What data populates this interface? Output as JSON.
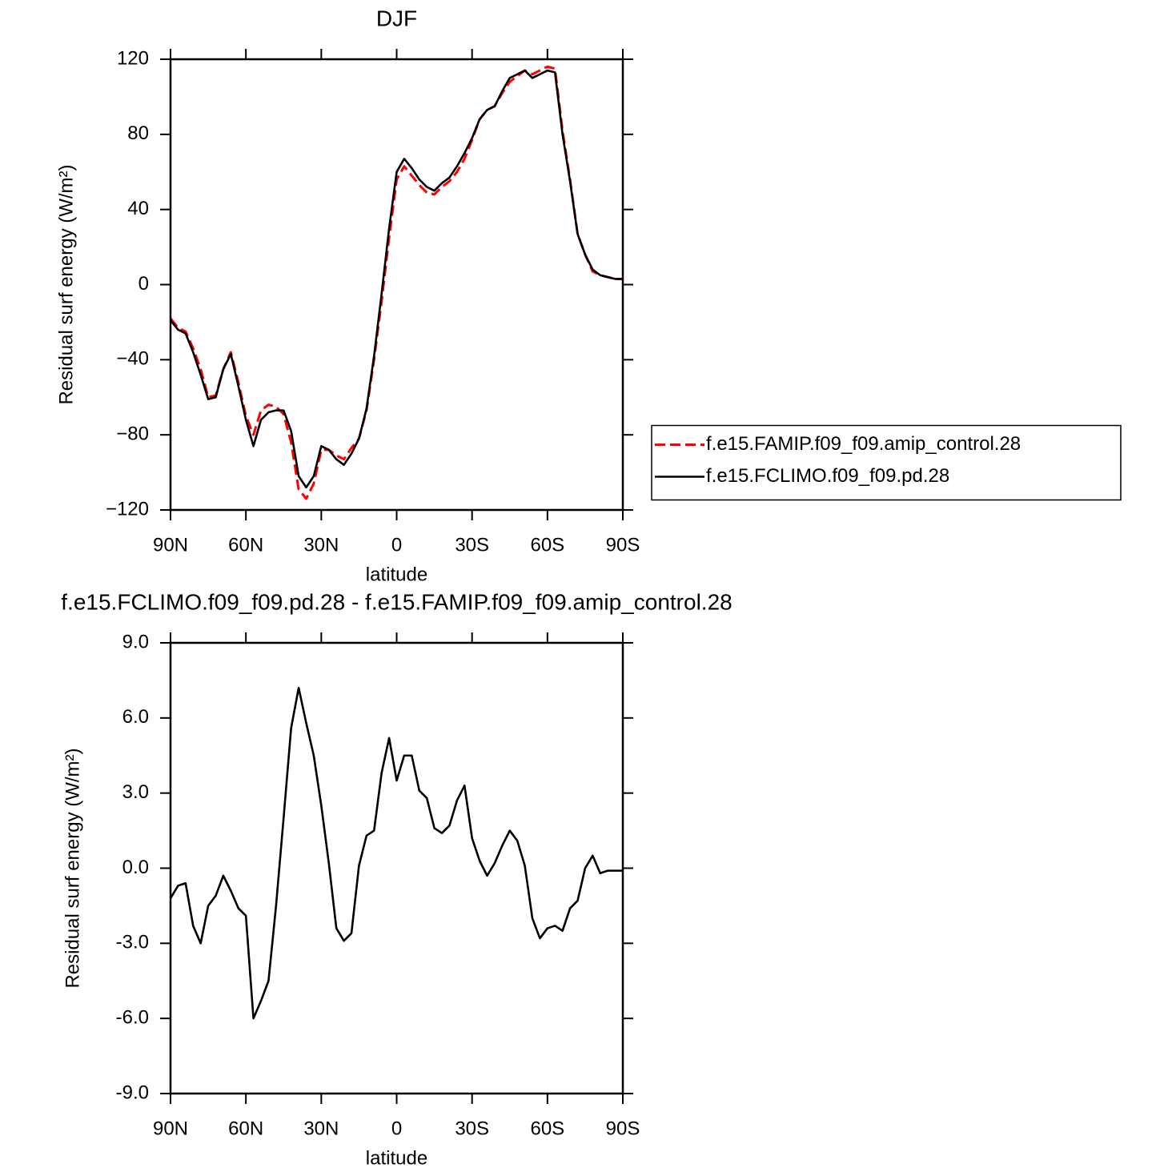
{
  "chart_data": [
    {
      "type": "line",
      "title": "DJF",
      "xlabel": "latitude",
      "ylabel": "Residual surf energy (W/m²)",
      "x": [
        90,
        87,
        84,
        81,
        78,
        75,
        72,
        69,
        66,
        63,
        60,
        57,
        54,
        51,
        48,
        45,
        42,
        39,
        36,
        33,
        30,
        27,
        24,
        21,
        18,
        15,
        12,
        9,
        6,
        3,
        0,
        -3,
        -6,
        -9,
        -12,
        -15,
        -18,
        -21,
        -24,
        -27,
        -30,
        -33,
        -36,
        -39,
        -42,
        -45,
        -48,
        -51,
        -54,
        -57,
        -60,
        -63,
        -66,
        -69,
        -72,
        -75,
        -78,
        -81,
        -84,
        -87,
        -90
      ],
      "series": [
        {
          "name": "f.e15.FAMIP.f09_f09.amip_control.28",
          "color": "#ff0000",
          "dashed": true,
          "values": [
            -18,
            -23,
            -25,
            -34,
            -45,
            -60,
            -59,
            -45,
            -36,
            -52,
            -70,
            -80,
            -67,
            -64,
            -65,
            -69,
            -84,
            -109,
            -114,
            -106,
            -88,
            -88,
            -91,
            -93,
            -87,
            -82,
            -67,
            -40,
            -9,
            25,
            56,
            63,
            58,
            53,
            49,
            48,
            52,
            55,
            60,
            67,
            77,
            88,
            93,
            95,
            102,
            108,
            111,
            114,
            112,
            114,
            116,
            115,
            82,
            56,
            27,
            16,
            7,
            5,
            4,
            3,
            3
          ]
        },
        {
          "name": "f.e15.FCLIMO.f09_f09.pd.28",
          "color": "#000000",
          "dashed": false,
          "values": [
            -19,
            -24,
            -26,
            -36,
            -48,
            -61,
            -60,
            -45,
            -37,
            -54,
            -72,
            -86,
            -72,
            -68,
            -67,
            -67,
            -78,
            -102,
            -108,
            -102,
            -86,
            -88,
            -93,
            -96,
            -90,
            -82,
            -66,
            -38,
            -5,
            30,
            60,
            67,
            62,
            56,
            52,
            50,
            54,
            57,
            63,
            70,
            78,
            88,
            93,
            95,
            103,
            110,
            112,
            114,
            110,
            112,
            114,
            113,
            80,
            55,
            27,
            16,
            8,
            5,
            4,
            3,
            3
          ]
        }
      ],
      "xlim": [
        90,
        -90
      ],
      "xticks": [
        {
          "value": 90,
          "label": "90N"
        },
        {
          "value": 60,
          "label": "60N"
        },
        {
          "value": 30,
          "label": "30N"
        },
        0,
        {
          "value": -30,
          "label": "30S"
        },
        {
          "value": -60,
          "label": "60S"
        },
        {
          "value": -90,
          "label": "90S"
        }
      ],
      "ylim": [
        -120,
        120
      ],
      "yticks": [
        {
          "value": -120,
          "label": "−120"
        },
        {
          "value": -80,
          "label": "−80"
        },
        {
          "value": -40,
          "label": "−40"
        },
        0,
        40,
        80,
        120
      ],
      "legend": "right"
    },
    {
      "type": "line",
      "title": "f.e15.FCLIMO.f09_f09.pd.28 - f.e15.FAMIP.f09_f09.amip_control.28",
      "xlabel": "latitude",
      "ylabel": "Residual surf energy (W/m²)",
      "x": [
        90,
        87,
        84,
        81,
        78,
        75,
        72,
        69,
        66,
        63,
        60,
        57,
        54,
        51,
        48,
        45,
        42,
        39,
        36,
        33,
        30,
        27,
        24,
        21,
        18,
        15,
        12,
        9,
        6,
        3,
        0,
        -3,
        -6,
        -9,
        -12,
        -15,
        -18,
        -21,
        -24,
        -27,
        -30,
        -33,
        -36,
        -39,
        -42,
        -45,
        -48,
        -51,
        -54,
        -57,
        -60,
        -63,
        -66,
        -69,
        -72,
        -75,
        -78,
        -81,
        -84,
        -87,
        -90
      ],
      "color": "#000000",
      "values": [
        -1.2,
        -0.7,
        -0.6,
        -2.3,
        -3.0,
        -1.5,
        -1.1,
        -0.3,
        -0.9,
        -1.6,
        -1.9,
        -6.0,
        -5.3,
        -4.5,
        -1.5,
        2.0,
        5.6,
        7.2,
        5.8,
        4.5,
        2.5,
        0.2,
        -2.4,
        -2.9,
        -2.6,
        0.1,
        1.3,
        1.5,
        3.8,
        5.2,
        3.5,
        4.5,
        4.5,
        3.1,
        2.8,
        1.6,
        1.4,
        1.7,
        2.7,
        3.3,
        1.2,
        0.3,
        -0.3,
        0.2,
        0.9,
        1.5,
        1.1,
        0.1,
        -2.0,
        -2.8,
        -2.4,
        -2.3,
        -2.5,
        -1.6,
        -1.3,
        0.0,
        0.5,
        -0.2,
        -0.1,
        -0.1,
        -0.1
      ],
      "xlim": [
        90,
        -90
      ],
      "xticks": [
        {
          "value": 90,
          "label": "90N"
        },
        {
          "value": 60,
          "label": "60N"
        },
        {
          "value": 30,
          "label": "30N"
        },
        0,
        {
          "value": -30,
          "label": "30S"
        },
        {
          "value": -60,
          "label": "60S"
        },
        {
          "value": -90,
          "label": "90S"
        }
      ],
      "ylim": [
        -9,
        9
      ],
      "yticks": [
        {
          "value": -9,
          "label": "-9.0"
        },
        {
          "value": -6,
          "label": "-6.0"
        },
        {
          "value": -3,
          "label": "-3.0"
        },
        {
          "value": 0,
          "label": "0.0"
        },
        {
          "value": 3,
          "label": "3.0"
        },
        {
          "value": 6,
          "label": "6.0"
        },
        {
          "value": 9,
          "label": "9.0"
        }
      ]
    }
  ]
}
